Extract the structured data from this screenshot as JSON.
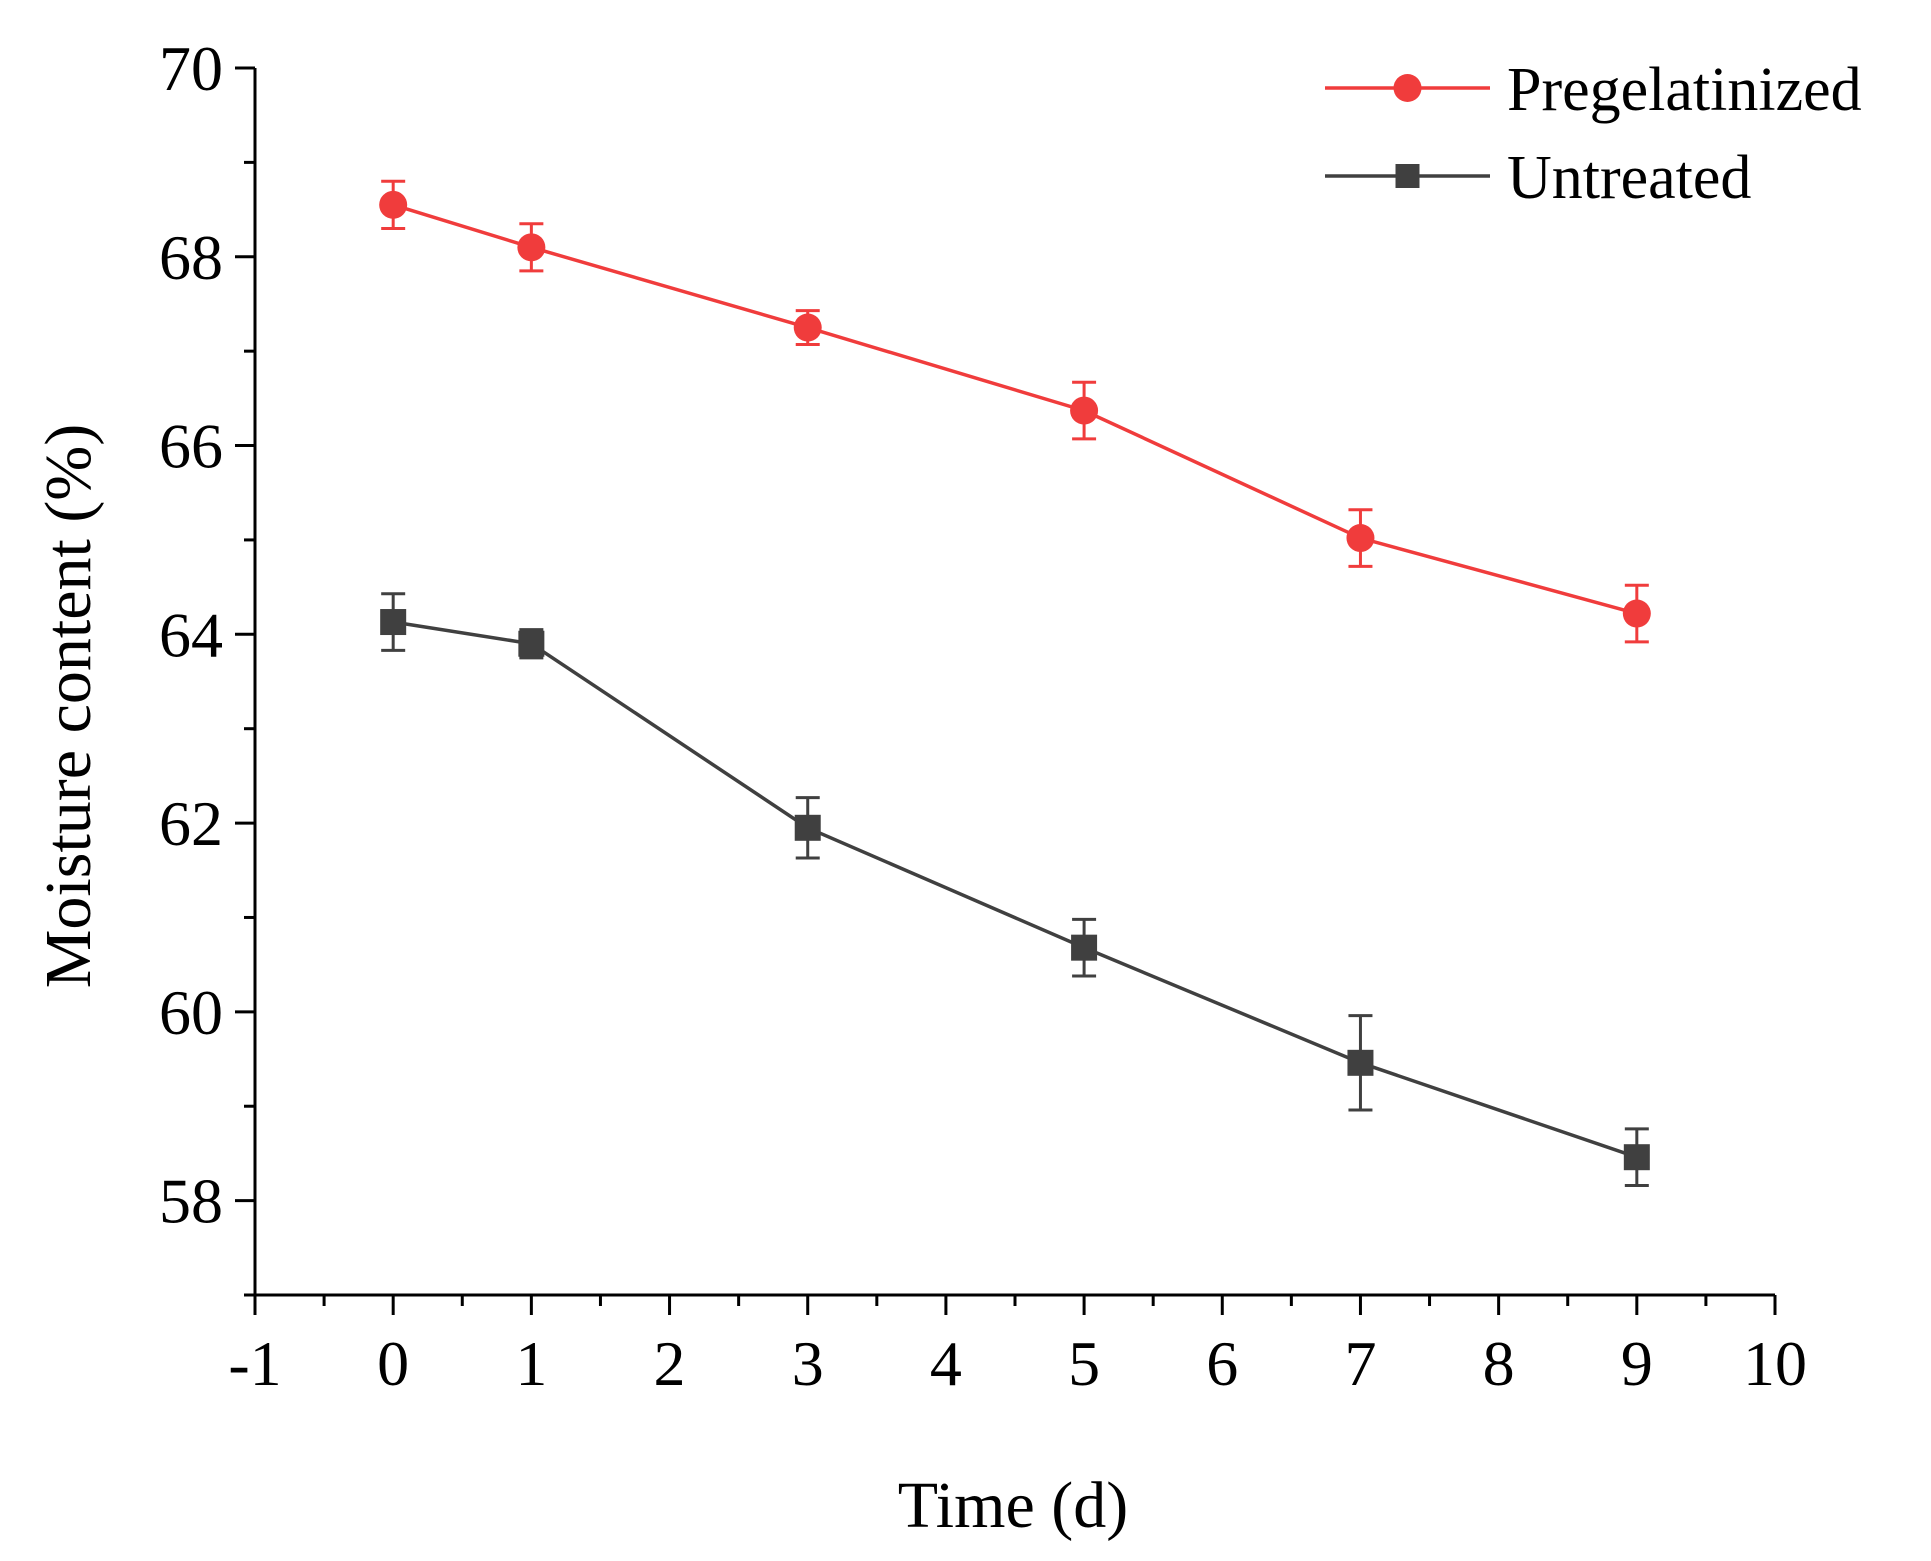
{
  "chart_data": {
    "type": "line",
    "title": "",
    "xlabel": "Time (d)",
    "ylabel": "Moisture content (%)",
    "xlim": [
      -1,
      10
    ],
    "ylim": [
      57,
      70
    ],
    "xticks": [
      -1,
      0,
      1,
      2,
      3,
      4,
      5,
      6,
      7,
      8,
      9,
      10
    ],
    "yticks": [
      58,
      60,
      62,
      64,
      66,
      68,
      70
    ],
    "grid": false,
    "legend_position": "top-right",
    "x": [
      0,
      1,
      3,
      5,
      7,
      9
    ],
    "series": [
      {
        "name": "Pregelatinized",
        "color": "#f03c3c",
        "marker": "circle",
        "values": [
          68.55,
          68.1,
          67.25,
          66.37,
          65.02,
          64.22
        ],
        "errors": [
          0.25,
          0.25,
          0.18,
          0.3,
          0.3,
          0.3
        ]
      },
      {
        "name": "Untreated",
        "color": "#404040",
        "marker": "square",
        "values": [
          64.13,
          63.9,
          61.95,
          60.68,
          59.46,
          58.46
        ],
        "errors": [
          0.3,
          0.15,
          0.32,
          0.3,
          0.5,
          0.3
        ]
      }
    ]
  }
}
